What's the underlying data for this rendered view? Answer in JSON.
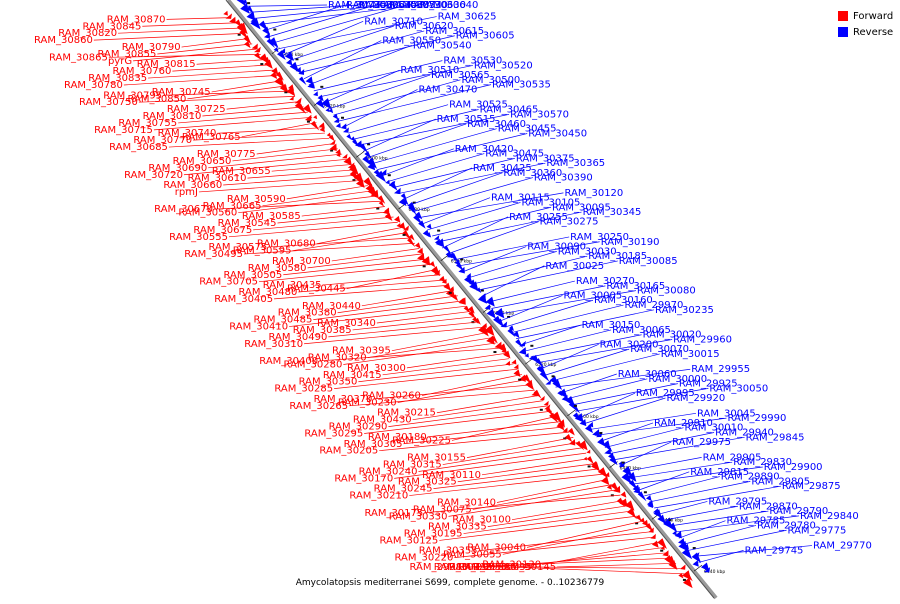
{
  "legend": {
    "forward_label": "Forward",
    "reverse_label": "Reverse",
    "forward_color": "#ff0000",
    "reverse_color": "#0000ff"
  },
  "caption": "Amycolatopsis mediterranei S699, complete genome. - 0..10236779",
  "scale_ticks": [
    "6640 kbp",
    "6620 kbp",
    "6600 kbp",
    "6580 kbp",
    "6560 kbp",
    "6540 kbp",
    "6520 kbp",
    "6500 kbp",
    "6480 kbp",
    "6460 kbp",
    "6440 kbp"
  ],
  "forward_genes": [
    "RAM_30870",
    "RAM_30845",
    "RAM_30820",
    "RAM_30860",
    "RAM_30790",
    "RAM_30855",
    "pyrG",
    "RAM_30865",
    "RAM_30815",
    "RAM_30760",
    "RAM_30835",
    "RAM_30780",
    "RAM_30745",
    "RAM_30850",
    "RAM_30795",
    "RAM_30750",
    "RAM_30725",
    "RAM_30810",
    "RAM_30755",
    "RAM_30715",
    "RAM_30765",
    "RAM_30740",
    "RAM_30770",
    "RAM_30685",
    "RAM_30775",
    "RAM_30650",
    "RAM_30690",
    "RAM_30720",
    "RAM_30655",
    "RAM_30610",
    "RAM_30660",
    "rpmJ",
    "RAM_30590",
    "RAM_30665",
    "RAM_30560",
    "RAM_30670",
    "RAM_30585",
    "RAM_30545",
    "RAM_30675",
    "RAM_30555",
    "RAM_30680",
    "RAM_30595",
    "RAM_30575",
    "RAM_30495",
    "RAM_30700",
    "RAM_30580",
    "RAM_30505",
    "RAM_30705",
    "RAM_30445",
    "RAM_30435",
    "RAM_30480",
    "RAM_30405",
    "RAM_30440",
    "RAM_30380",
    "RAM_30485",
    "RAM_30410",
    "RAM_30340",
    "RAM_30385",
    "RAM_30490",
    "RAM_30310",
    "RAM_30395",
    "RAM_30320",
    "RAM_30280",
    "RAM_30400",
    "RAM_30300",
    "RAM_30415",
    "RAM_30350",
    "RAM_30285",
    "RAM_30260",
    "RAM_30230",
    "RAM_30370",
    "RAM_30265",
    "RAM_30215",
    "RAM_30430",
    "RAM_30290",
    "RAM_30295",
    "RAM_30225",
    "RAM_30180",
    "RAM_30305",
    "RAM_30205",
    "RAM_30155",
    "RAM_30315",
    "RAM_30240",
    "RAM_30170",
    "RAM_30110",
    "RAM_30325",
    "RAM_30245",
    "RAM_30210",
    "RAM_30140",
    "RAM_30075",
    "RAM_30330",
    "RAM_30175",
    "RAM_30100",
    "RAM_30335",
    "RAM_30195",
    "RAM_30125",
    "RAM_30040",
    "RAM_30055",
    "RAM_30355",
    "RAM_30220",
    "RAM_30130",
    "RAM_29985",
    "RAM_30135",
    "RAM_29980",
    "RAM_30145",
    "RAM_30035",
    "RAM_29950"
  ],
  "reverse_genes": [
    "RAM_30735",
    "RAM_30645",
    "RAM_30730",
    "RAM_30640",
    "RAM_30695",
    "RAM_30635",
    "RAM_30630",
    "RAM_30625",
    "RAM_30710",
    "RAM_30620",
    "RAM_30615",
    "RAM_30605",
    "RAM_30550",
    "RAM_30540",
    "RAM_30530",
    "RAM_30520",
    "RAM_30510",
    "RAM_30565",
    "RAM_30500",
    "RAM_30535",
    "RAM_30470",
    "RAM_30525",
    "RAM_30465",
    "RAM_30570",
    "RAM_30515",
    "RAM_30460",
    "RAM_30455",
    "RAM_30450",
    "RAM_30420",
    "RAM_30475",
    "RAM_30375",
    "RAM_30365",
    "RAM_30425",
    "RAM_30360",
    "RAM_30390",
    "RAM_30120",
    "RAM_30115",
    "RAM_30105",
    "RAM_30095",
    "RAM_30345",
    "RAM_30255",
    "RAM_30275",
    "RAM_30250",
    "RAM_30190",
    "RAM_30090",
    "RAM_30030",
    "RAM_30185",
    "RAM_30085",
    "RAM_30025",
    "RAM_30270",
    "RAM_30165",
    "RAM_30080",
    "RAM_30005",
    "RAM_30160",
    "RAM_29970",
    "RAM_30235",
    "RAM_30150",
    "RAM_30065",
    "RAM_30020",
    "RAM_29960",
    "RAM_30200",
    "RAM_30070",
    "RAM_30015",
    "RAM_29955",
    "RAM_30060",
    "RAM_30000",
    "RAM_29925",
    "RAM_30050",
    "RAM_29995",
    "RAM_29920",
    "RAM_30045",
    "RAM_29990",
    "RAM_29910",
    "RAM_30010",
    "RAM_29940",
    "RAM_29845",
    "RAM_29975",
    "RAM_29905",
    "RAM_29830",
    "RAM_29900",
    "RAM_29815",
    "RAM_29890",
    "RAM_29805",
    "RAM_29875",
    "RAM_29795",
    "RAM_29870",
    "RAM_29790",
    "RAM_29840",
    "RAM_29785",
    "RAM_29780",
    "RAM_29775",
    "RAM_29770",
    "RAM_29745"
  ]
}
